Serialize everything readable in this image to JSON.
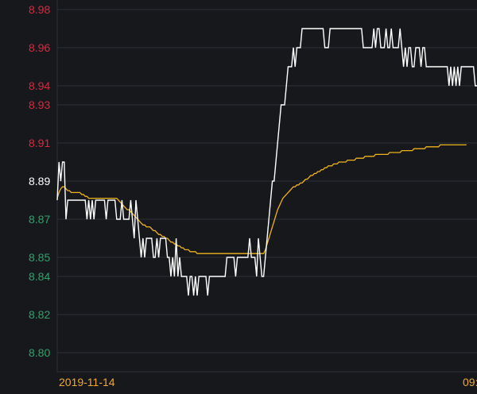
{
  "chart_data": {
    "type": "line",
    "title": "",
    "xlabel": "",
    "ylabel": "",
    "ylim": [
      8.79,
      8.985
    ],
    "grid": true,
    "yticks": [
      {
        "value": 8.98,
        "label": "8.98",
        "color": "#e0263e"
      },
      {
        "value": 8.96,
        "label": "8.96",
        "color": "#e0263e"
      },
      {
        "value": 8.94,
        "label": "8.94",
        "color": "#e0263e"
      },
      {
        "value": 8.93,
        "label": "8.93",
        "color": "#e0263e"
      },
      {
        "value": 8.91,
        "label": "8.91",
        "color": "#e0263e"
      },
      {
        "value": 8.89,
        "label": "8.89",
        "color": "#ffffff"
      },
      {
        "value": 8.87,
        "label": "8.87",
        "color": "#2fa36b"
      },
      {
        "value": 8.85,
        "label": "8.85",
        "color": "#2fa36b"
      },
      {
        "value": 8.84,
        "label": "8.84",
        "color": "#2fa36b"
      },
      {
        "value": 8.82,
        "label": "8.82",
        "color": "#2fa36b"
      },
      {
        "value": 8.8,
        "label": "8.80",
        "color": "#2fa36b"
      }
    ],
    "xticks": [
      {
        "index": 0,
        "label": "2019-11-14"
      },
      {
        "index": 240,
        "label": "09:"
      }
    ],
    "colors": {
      "background": "#16181c",
      "grid": "#2c2f34",
      "price": "#ffffff",
      "average": "#f0b31c",
      "xtick": "#f0a830"
    },
    "series": [
      {
        "kind": "price",
        "color": "#ffffff",
        "values": [
          8.88,
          8.9,
          8.89,
          8.9,
          8.9,
          8.87,
          8.88,
          8.88,
          8.88,
          8.88,
          8.88,
          8.88,
          8.88,
          8.88,
          8.88,
          8.88,
          8.88,
          8.87,
          8.88,
          8.87,
          8.88,
          8.87,
          8.88,
          8.88,
          8.88,
          8.88,
          8.88,
          8.88,
          8.87,
          8.88,
          8.88,
          8.88,
          8.88,
          8.88,
          8.87,
          8.87,
          8.87,
          8.88,
          8.87,
          8.87,
          8.87,
          8.87,
          8.88,
          8.87,
          8.86,
          8.88,
          8.87,
          8.86,
          8.85,
          8.86,
          8.85,
          8.86,
          8.86,
          8.86,
          8.86,
          8.85,
          8.85,
          8.86,
          8.85,
          8.86,
          8.86,
          8.86,
          8.86,
          8.85,
          8.85,
          8.84,
          8.85,
          8.84,
          8.86,
          8.84,
          8.85,
          8.84,
          8.84,
          8.84,
          8.84,
          8.83,
          8.84,
          8.84,
          8.83,
          8.84,
          8.83,
          8.84,
          8.84,
          8.84,
          8.84,
          8.84,
          8.83,
          8.84,
          8.84,
          8.84,
          8.84,
          8.84,
          8.84,
          8.84,
          8.84,
          8.84,
          8.84,
          8.85,
          8.85,
          8.85,
          8.85,
          8.85,
          8.84,
          8.85,
          8.85,
          8.85,
          8.85,
          8.85,
          8.85,
          8.85,
          8.86,
          8.85,
          8.85,
          8.85,
          8.84,
          8.86,
          8.85,
          8.84,
          8.84,
          8.85,
          8.86,
          8.87,
          8.88,
          8.89,
          8.89,
          8.9,
          8.91,
          8.92,
          8.93,
          8.93,
          8.93,
          8.94,
          8.95,
          8.95,
          8.95,
          8.96,
          8.95,
          8.96,
          8.96,
          8.96,
          8.97,
          8.97,
          8.97,
          8.97,
          8.97,
          8.97,
          8.97,
          8.97,
          8.97,
          8.97,
          8.97,
          8.97,
          8.97,
          8.96,
          8.96,
          8.96,
          8.97,
          8.97,
          8.97,
          8.97,
          8.97,
          8.97,
          8.97,
          8.97,
          8.97,
          8.97,
          8.97,
          8.97,
          8.97,
          8.97,
          8.97,
          8.97,
          8.97,
          8.97,
          8.97,
          8.96,
          8.96,
          8.96,
          8.96,
          8.96,
          8.96,
          8.97,
          8.96,
          8.97,
          8.97,
          8.96,
          8.96,
          8.96,
          8.97,
          8.96,
          8.96,
          8.97,
          8.96,
          8.96,
          8.96,
          8.96,
          8.97,
          8.96,
          8.95,
          8.96,
          8.95,
          8.96,
          8.96,
          8.95,
          8.95,
          8.96,
          8.96,
          8.96,
          8.95,
          8.96,
          8.96,
          8.95,
          8.95,
          8.95,
          8.95,
          8.95,
          8.95,
          8.95,
          8.95,
          8.95,
          8.95,
          8.95,
          8.95,
          8.95,
          8.94,
          8.95,
          8.94,
          8.95,
          8.94,
          8.95,
          8.94,
          8.95,
          8.95,
          8.95,
          8.95,
          8.95,
          8.95,
          8.95,
          8.95,
          8.94,
          8.94
        ]
      },
      {
        "kind": "average",
        "color": "#f0b31c",
        "values": [
          8.881,
          8.884,
          8.886,
          8.887,
          8.887,
          8.886,
          8.885,
          8.885,
          8.884,
          8.884,
          8.884,
          8.884,
          8.884,
          8.884,
          8.883,
          8.883,
          8.882,
          8.882,
          8.881,
          8.881,
          8.881,
          8.881,
          8.881,
          8.881,
          8.881,
          8.881,
          8.881,
          8.881,
          8.881,
          8.881,
          8.881,
          8.881,
          8.881,
          8.881,
          8.881,
          8.88,
          8.879,
          8.878,
          8.877,
          8.876,
          8.875,
          8.875,
          8.874,
          8.873,
          8.872,
          8.871,
          8.87,
          8.869,
          8.868,
          8.867,
          8.867,
          8.866,
          8.866,
          8.866,
          8.865,
          8.864,
          8.864,
          8.863,
          8.862,
          8.862,
          8.861,
          8.861,
          8.86,
          8.86,
          8.859,
          8.858,
          8.858,
          8.857,
          8.857,
          8.856,
          8.856,
          8.855,
          8.855,
          8.854,
          8.854,
          8.854,
          8.853,
          8.853,
          8.853,
          8.853,
          8.852,
          8.852,
          8.852,
          8.852,
          8.852,
          8.852,
          8.852,
          8.852,
          8.852,
          8.852,
          8.852,
          8.852,
          8.852,
          8.852,
          8.852,
          8.852,
          8.852,
          8.852,
          8.852,
          8.852,
          8.852,
          8.852,
          8.852,
          8.852,
          8.852,
          8.852,
          8.852,
          8.852,
          8.852,
          8.852,
          8.852,
          8.852,
          8.852,
          8.852,
          8.852,
          8.852,
          8.852,
          8.852,
          8.852,
          8.854,
          8.857,
          8.86,
          8.863,
          8.866,
          8.869,
          8.872,
          8.875,
          8.877,
          8.879,
          8.881,
          8.882,
          8.883,
          8.884,
          8.885,
          8.886,
          8.887,
          8.887,
          8.888,
          8.888,
          8.889,
          8.889,
          8.89,
          8.891,
          8.891,
          8.892,
          8.893,
          8.893,
          8.894,
          8.894,
          8.895,
          8.895,
          8.896,
          8.896,
          8.897,
          8.897,
          8.898,
          8.898,
          8.898,
          8.899,
          8.899,
          8.899,
          8.9,
          8.9,
          8.9,
          8.9,
          8.9,
          8.901,
          8.901,
          8.901,
          8.901,
          8.901,
          8.902,
          8.902,
          8.902,
          8.902,
          8.902,
          8.903,
          8.903,
          8.903,
          8.903,
          8.903,
          8.903,
          8.904,
          8.904,
          8.904,
          8.904,
          8.904,
          8.904,
          8.904,
          8.904,
          8.905,
          8.905,
          8.905,
          8.905,
          8.905,
          8.905,
          8.905,
          8.906,
          8.906,
          8.906,
          8.906,
          8.906,
          8.906,
          8.906,
          8.907,
          8.907,
          8.907,
          8.907,
          8.907,
          8.907,
          8.907,
          8.908,
          8.908,
          8.908,
          8.908,
          8.908,
          8.908,
          8.908,
          8.908,
          8.909,
          8.909,
          8.909,
          8.909,
          8.909,
          8.909,
          8.909,
          8.909,
          8.909,
          8.909,
          8.909,
          8.909,
          8.909,
          8.909,
          8.909,
          8.909
        ]
      }
    ]
  }
}
